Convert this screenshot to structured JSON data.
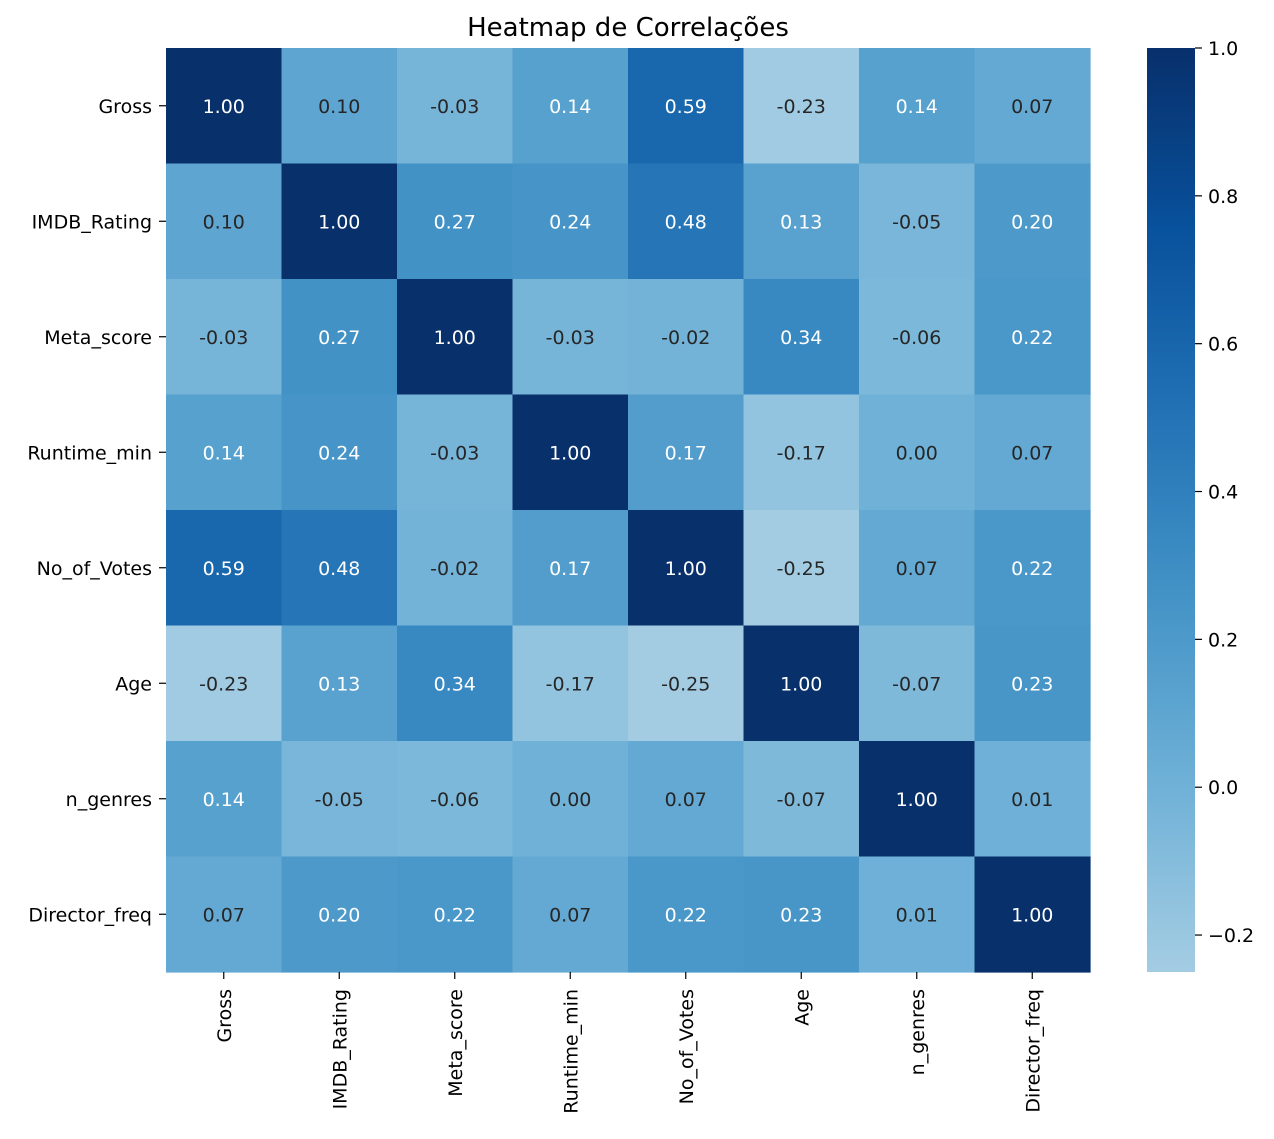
{
  "chart_data": {
    "type": "heatmap",
    "title": "Heatmap de Correlações",
    "xlabel": "",
    "ylabel": "",
    "x_labels": [
      "Gross",
      "IMDB_Rating",
      "Meta_score",
      "Runtime_min",
      "No_of_Votes",
      "Age",
      "n_genres",
      "Director_freq"
    ],
    "y_labels": [
      "Gross",
      "IMDB_Rating",
      "Meta_score",
      "Runtime_min",
      "No_of_Votes",
      "Age",
      "n_genres",
      "Director_freq"
    ],
    "values": [
      [
        1.0,
        0.1,
        -0.03,
        0.14,
        0.59,
        -0.23,
        0.14,
        0.07
      ],
      [
        0.1,
        1.0,
        0.27,
        0.24,
        0.48,
        0.13,
        -0.05,
        0.2
      ],
      [
        -0.03,
        0.27,
        1.0,
        -0.03,
        -0.02,
        0.34,
        -0.06,
        0.22
      ],
      [
        0.14,
        0.24,
        -0.03,
        1.0,
        0.17,
        -0.17,
        0.0,
        0.07
      ],
      [
        0.59,
        0.48,
        -0.02,
        0.17,
        1.0,
        -0.25,
        0.07,
        0.22
      ],
      [
        -0.23,
        0.13,
        0.34,
        -0.17,
        -0.25,
        1.0,
        -0.07,
        0.23
      ],
      [
        0.14,
        -0.05,
        -0.06,
        0.0,
        0.07,
        -0.07,
        1.0,
        0.01
      ],
      [
        0.07,
        0.2,
        0.22,
        0.07,
        0.22,
        0.23,
        0.01,
        1.0
      ]
    ],
    "value_format": "0.00",
    "colormap": "Blues",
    "colorbar": {
      "range": [
        -0.25,
        1.0
      ],
      "ticks": [
        -0.2,
        0.0,
        0.2,
        0.4,
        0.6,
        0.8,
        1.0
      ],
      "tick_labels": [
        "−0.2",
        "0.0",
        "0.2",
        "0.4",
        "0.6",
        "0.8",
        "1.0"
      ]
    },
    "annotation_colors": {
      "light": "#ffffff",
      "dark": "#262626"
    }
  }
}
